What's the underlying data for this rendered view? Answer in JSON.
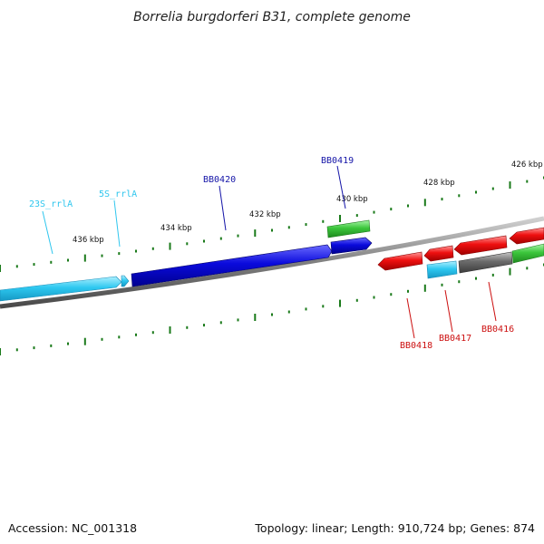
{
  "title": "Borrelia burgdorferi B31, complete genome",
  "footer": {
    "accession": "Accession: NC_001318",
    "summary": "Topology: linear; Length: 910,724 bp; Genes: 874"
  },
  "colors": {
    "rrna": "#2ec8f0",
    "cds_plus": "#0a0adc",
    "cds_minus": "#ef1010",
    "gene": "#3cc63c",
    "pseudo": "#6b6b6b",
    "backbone": "#7f7f7f",
    "ticks": "#1a7a1a",
    "label_rrna": "#2fc6ee",
    "label_plus": "#1515a8",
    "label_minus": "#cc1010"
  },
  "ticks": [
    "426 kbp",
    "428 kbp",
    "430 kbp",
    "432 kbp",
    "434 kbp",
    "436 kbp"
  ],
  "features": [
    {
      "label": "23S_rrlA",
      "type": "rRNA",
      "strand": "+"
    },
    {
      "label": "5S_rrlA",
      "type": "rRNA",
      "strand": "+"
    },
    {
      "label": "BB0420",
      "type": "CDS",
      "strand": "+"
    },
    {
      "label": "BB0419",
      "type": "CDS",
      "strand": "+"
    },
    {
      "label": "BB0418",
      "type": "CDS",
      "strand": "-"
    },
    {
      "label": "BB0417",
      "type": "CDS",
      "strand": "-"
    },
    {
      "label": "BB0416",
      "type": "CDS",
      "strand": "-"
    }
  ]
}
